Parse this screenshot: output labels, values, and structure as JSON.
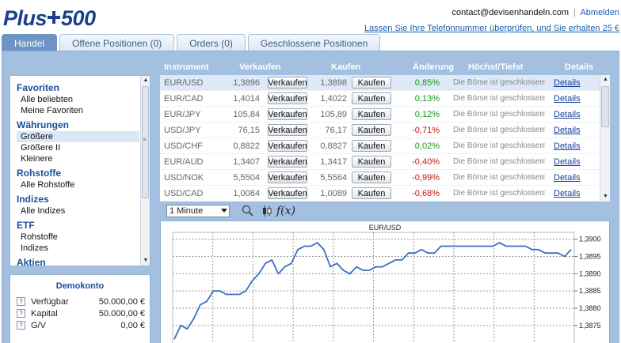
{
  "header": {
    "logo_text": "Plus500",
    "email": "contact@devisenhandeln.com",
    "separator": "|",
    "logout": "Abmelden",
    "phone_offer": "Lassen Sie Ihre Telefonnummer überprüfen, und Sie erhalten 25 €"
  },
  "tabs": [
    {
      "label": "Handel",
      "active": true
    },
    {
      "label": "Offene Positionen (0)",
      "active": false
    },
    {
      "label": "Orders (0)",
      "active": false
    },
    {
      "label": "Geschlossene Positionen",
      "active": false
    }
  ],
  "sidebar": {
    "sections": [
      {
        "title": "Favoriten",
        "items": [
          "Alle beliebten",
          "Meine Favoriten"
        ]
      },
      {
        "title": "Währungen",
        "items": [
          "Größere",
          "Größere II",
          "Kleinere"
        ]
      },
      {
        "title": "Rohstoffe",
        "items": [
          "Alle Rohstoffe"
        ]
      },
      {
        "title": "Indizes",
        "items": [
          "Alle Indizes"
        ]
      },
      {
        "title": "ETF",
        "items": [
          "Rohstoffe",
          "Indizes"
        ]
      },
      {
        "title": "Aktien",
        "items": []
      }
    ],
    "selected_item": "Größere"
  },
  "demo_account": {
    "title": "Demokonto",
    "rows": [
      {
        "label": "Verfügbar",
        "value": "50.000,00 €"
      },
      {
        "label": "Kapital",
        "value": "50.000,00 €"
      },
      {
        "label": "G/V",
        "value": "0,00 €"
      }
    ]
  },
  "rates_table": {
    "headers": {
      "instrument": "Instrument",
      "sell": "Verkaufen",
      "buy": "Kaufen",
      "change": "Änderung",
      "highlow": "Höchst/Tiefst",
      "details": "Details"
    },
    "sell_button": "Verkaufen",
    "buy_button": "Kaufen",
    "details_link": "Details",
    "rows": [
      {
        "instrument": "EUR/USD",
        "sell": "1,3896",
        "buy": "1,3898",
        "change": "0,85%",
        "direction": "pos",
        "highlow": "Die Börse ist geschlossen"
      },
      {
        "instrument": "EUR/CAD",
        "sell": "1,4014",
        "buy": "1,4022",
        "change": "0,13%",
        "direction": "pos",
        "highlow": "Die Börse ist geschlossen"
      },
      {
        "instrument": "EUR/JPY",
        "sell": "105,84",
        "buy": "105,89",
        "change": "0,12%",
        "direction": "pos",
        "highlow": "Die Börse ist geschlossen"
      },
      {
        "instrument": "USD/JPY",
        "sell": "76,15",
        "buy": "76,17",
        "change": "-0,71%",
        "direction": "neg",
        "highlow": "Die Börse ist geschlossen"
      },
      {
        "instrument": "USD/CHF",
        "sell": "0,8822",
        "buy": "0,8827",
        "change": "0,02%",
        "direction": "pos",
        "highlow": "Die Börse ist geschlossen"
      },
      {
        "instrument": "EUR/AUD",
        "sell": "1,3407",
        "buy": "1,3417",
        "change": "-0,40%",
        "direction": "neg",
        "highlow": "Die Börse ist geschlossen"
      },
      {
        "instrument": "USD/NOK",
        "sell": "5,5504",
        "buy": "5,5564",
        "change": "-0,99%",
        "direction": "neg",
        "highlow": "Die Börse ist geschlossen"
      },
      {
        "instrument": "USD/CAD",
        "sell": "1,0084",
        "buy": "1,0089",
        "change": "-0,68%",
        "direction": "neg",
        "highlow": "Die Börse ist geschlossen"
      }
    ],
    "selected_row": 0
  },
  "chart_toolbar": {
    "interval": "1 Minute",
    "icons": [
      "zoom-icon",
      "candlestick-icon",
      "function-icon"
    ],
    "function_label": "f(x)"
  },
  "chart_data": {
    "type": "line",
    "title": "EUR/USD",
    "xlabel": "",
    "ylabel": "",
    "ylim": [
      1.3869,
      1.3902
    ],
    "yticks": [
      "1,3900",
      "1,3895",
      "1,3890",
      "1,3885",
      "1,3880",
      "1,3875"
    ],
    "grid": true,
    "line_color": "#3a6fc4",
    "series": [
      {
        "values": [
          1.3871,
          1.3875,
          1.3874,
          1.3877,
          1.3881,
          1.3882,
          1.3885,
          1.3885,
          1.3884,
          1.3884,
          1.3884,
          1.3885,
          1.3888,
          1.389,
          1.3893,
          1.3894,
          1.389,
          1.3892,
          1.3893,
          1.3897,
          1.3898,
          1.3898,
          1.3899,
          1.3897,
          1.3892,
          1.3893,
          1.3891,
          1.389,
          1.3892,
          1.3891,
          1.3891,
          1.3892,
          1.3892,
          1.3893,
          1.3894,
          1.3894,
          1.3896,
          1.3896,
          1.3897,
          1.3896,
          1.3896,
          1.3898,
          1.3898,
          1.3898,
          1.3898,
          1.3898,
          1.3898,
          1.3898,
          1.3898,
          1.3898,
          1.3899,
          1.3898,
          1.3898,
          1.3898,
          1.3898,
          1.3897,
          1.3897,
          1.3896,
          1.3896,
          1.3896,
          1.3895,
          1.3897
        ]
      }
    ]
  }
}
